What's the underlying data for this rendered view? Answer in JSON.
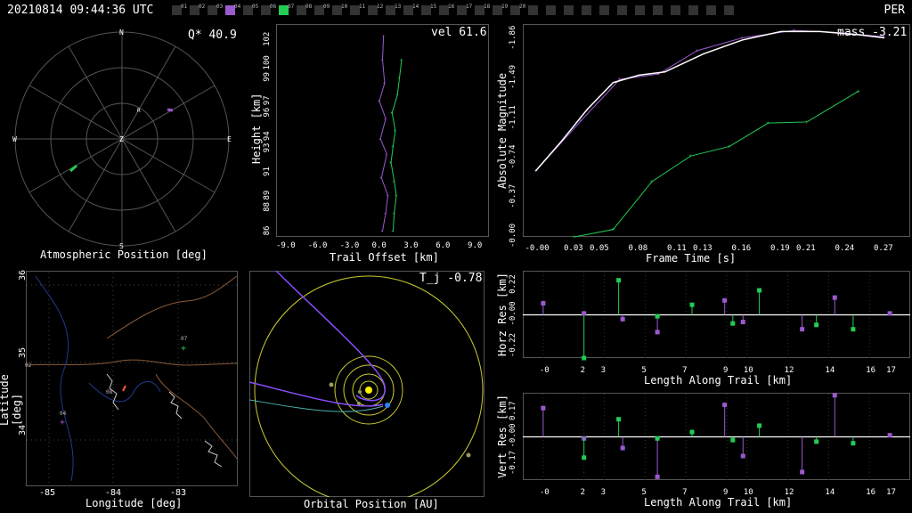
{
  "header": {
    "timestamp": "20210814 09:44:36 UTC",
    "shower": "PER",
    "stations": [
      {
        "id": "01",
        "color": "#333"
      },
      {
        "id": "02",
        "color": "#333"
      },
      {
        "id": "03",
        "color": "#333"
      },
      {
        "id": "04",
        "color": "#9b59d0"
      },
      {
        "id": "05",
        "color": "#333"
      },
      {
        "id": "06",
        "color": "#333"
      },
      {
        "id": "07",
        "color": "#22cc55"
      },
      {
        "id": "08",
        "color": "#333"
      },
      {
        "id": "09",
        "color": "#333"
      },
      {
        "id": "10",
        "color": "#333"
      },
      {
        "id": "11",
        "color": "#333"
      },
      {
        "id": "12",
        "color": "#333"
      },
      {
        "id": "13",
        "color": "#333"
      },
      {
        "id": "14",
        "color": "#333"
      },
      {
        "id": "15",
        "color": "#333"
      },
      {
        "id": "16",
        "color": "#333"
      },
      {
        "id": "17",
        "color": "#333"
      },
      {
        "id": "18",
        "color": "#333"
      },
      {
        "id": "19",
        "color": "#333"
      },
      {
        "id": "20",
        "color": "#333"
      },
      {
        "id": "",
        "color": "#333"
      },
      {
        "id": "",
        "color": "#333"
      },
      {
        "id": "",
        "color": "#333"
      },
      {
        "id": "",
        "color": "#333"
      },
      {
        "id": "",
        "color": "#333"
      },
      {
        "id": "",
        "color": "#333"
      },
      {
        "id": "",
        "color": "#333"
      },
      {
        "id": "",
        "color": "#333"
      },
      {
        "id": "",
        "color": "#333"
      },
      {
        "id": "",
        "color": "#333"
      },
      {
        "id": "",
        "color": "#333"
      },
      {
        "id": "",
        "color": "#333"
      }
    ]
  },
  "polar": {
    "value_label": "Q* 40.9",
    "caption": "Atmospheric Position [deg]",
    "cardinals": {
      "n": "N",
      "s": "S",
      "e": "E",
      "w": "W",
      "z": "Z",
      "r": "R"
    }
  },
  "colors": {
    "station_a": "#9b59d0",
    "station_b": "#22cc55",
    "fit": "#ffffff"
  },
  "chart_data": [
    {
      "type": "line",
      "title": "vel 61.6",
      "xlabel": "Trail Offset [km]",
      "ylabel": "Height [km]",
      "x_ticks": [
        "-9.0",
        "-6.0",
        "-3.0",
        "0.0",
        "3.0",
        "6.0",
        "9.0"
      ],
      "y_ticks": [
        "86",
        "88",
        "89",
        "91",
        "93",
        "94",
        "96",
        "97",
        "99",
        "100",
        "102"
      ],
      "xlim": [
        -10,
        10
      ],
      "ylim": [
        85.5,
        103.5
      ],
      "series": [
        {
          "x": [
            0.1,
            0.0,
            0.2,
            -0.3,
            0.3,
            -0.2,
            0.4,
            -0.1,
            0.5,
            0.3,
            0.0
          ],
          "y": [
            102.5,
            100.5,
            98.5,
            97,
            95.5,
            93.8,
            92.5,
            90.5,
            89,
            87.5,
            86
          ]
        },
        {
          "x": [
            1.8,
            1.6,
            1.4,
            0.9,
            1.2,
            1.0,
            0.8,
            1.1,
            1.3,
            1.1,
            1.0
          ],
          "y": [
            100.5,
            99,
            97.5,
            96,
            94.5,
            93.2,
            91.8,
            90.2,
            89,
            87.5,
            86
          ]
        }
      ]
    },
    {
      "type": "line",
      "title": "mass -3.21",
      "xlabel": "Frame Time [s]",
      "ylabel": "Absolute Magnitude",
      "x_ticks": [
        "-0.00",
        "0.03",
        "0.05",
        "0.08",
        "0.11",
        "0.13",
        "0.16",
        "0.19",
        "0.21",
        "0.24",
        "0.27"
      ],
      "y_ticks": [
        "-1.86",
        "-1.49",
        "-1.11",
        "-0.74",
        "-0.37",
        "-0.00"
      ],
      "xlim": [
        -0.01,
        0.29
      ],
      "ylim": [
        -2.0,
        0.0
      ],
      "series": [
        {
          "x": [
            0.0,
            0.035,
            0.065,
            0.095,
            0.125,
            0.16,
            0.2,
            0.235,
            0.27
          ],
          "y": [
            -0.62,
            -1.09,
            -1.48,
            -1.53,
            -1.75,
            -1.87,
            -1.94,
            -1.92,
            -1.88
          ]
        },
        {
          "x": [
            0.03,
            0.06,
            0.09,
            0.12,
            0.15,
            0.18,
            0.21,
            0.25
          ],
          "y": [
            0.0,
            -0.07,
            -0.52,
            -0.76,
            -0.85,
            -1.07,
            -1.08,
            -1.37
          ]
        },
        {
          "x": [
            0.0,
            0.02,
            0.04,
            0.06,
            0.08,
            0.1,
            0.13,
            0.16,
            0.19,
            0.22,
            0.25,
            0.27
          ],
          "y": [
            -0.62,
            -0.9,
            -1.2,
            -1.45,
            -1.52,
            -1.55,
            -1.72,
            -1.85,
            -1.93,
            -1.93,
            -1.9,
            -1.87
          ]
        }
      ]
    },
    {
      "type": "scatter",
      "title": "",
      "xlabel": "Length Along Trail [km]",
      "ylabel": "Horz Res [km]",
      "x_ticks": [
        "-0",
        "2",
        "3",
        "5",
        "7",
        "9",
        "10",
        "12",
        "14",
        "16",
        "17"
      ],
      "y_ticks": [
        "0.22",
        "-0.00",
        "-0.22"
      ],
      "xlim": [
        -1.0,
        18.0
      ],
      "ylim": [
        -0.3,
        0.3
      ],
      "series": [
        {
          "x": [
            0,
            2,
            3.9,
            5.6,
            8.9,
            9.8,
            12.7,
            14.3,
            17
          ],
          "y": [
            0.08,
            0.01,
            -0.03,
            -0.12,
            0.1,
            -0.05,
            -0.1,
            0.12,
            0.01
          ]
        },
        {
          "x": [
            2.0,
            3.7,
            5.6,
            7.3,
            9.3,
            10.6,
            13.4,
            15.2
          ],
          "y": [
            -0.3,
            0.24,
            -0.01,
            0.07,
            -0.06,
            0.17,
            -0.07,
            -0.1
          ]
        }
      ]
    },
    {
      "type": "scatter",
      "title": "",
      "xlabel": "Length Along Trail [km]",
      "ylabel": "Vert Res [km]",
      "x_ticks": [
        "-0",
        "2",
        "3",
        "5",
        "7",
        "9",
        "10",
        "12",
        "14",
        "16",
        "17"
      ],
      "y_ticks": [
        "0.17",
        "-0.00",
        "-0.17"
      ],
      "xlim": [
        -1.0,
        18.0
      ],
      "ylim": [
        -0.27,
        0.27
      ],
      "series": [
        {
          "x": [
            0,
            2,
            3.9,
            5.6,
            8.9,
            9.8,
            12.7,
            14.3,
            17
          ],
          "y": [
            0.18,
            -0.01,
            -0.07,
            -0.25,
            0.2,
            -0.12,
            -0.22,
            0.26,
            0.01
          ]
        },
        {
          "x": [
            2.0,
            3.7,
            5.6,
            7.3,
            9.3,
            10.6,
            13.4,
            15.2
          ],
          "y": [
            -0.13,
            0.11,
            -0.01,
            0.03,
            -0.02,
            0.07,
            -0.03,
            -0.04
          ]
        }
      ]
    }
  ],
  "map": {
    "xlabel": "Longitude [deg]",
    "ylabel": "Latitude [deg]",
    "x_ticks": [
      "-85",
      "-84",
      "-83"
    ],
    "y_ticks": [
      "36",
      "35",
      "34"
    ],
    "stations": [
      "07",
      "08",
      "04",
      "02"
    ]
  },
  "orbit": {
    "title": "T_j -0.78",
    "caption": "Orbital Position [AU]"
  }
}
